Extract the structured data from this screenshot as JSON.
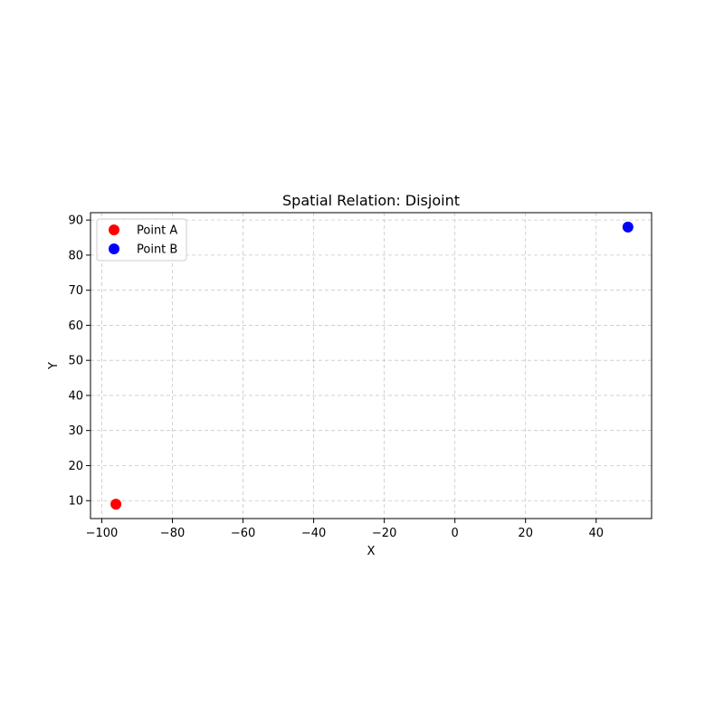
{
  "chart_data": {
    "type": "scatter",
    "title": "Spatial Relation: Disjoint",
    "xlabel": "X",
    "ylabel": "Y",
    "xlim": [
      -103.2,
      55.7
    ],
    "ylim": [
      4.9,
      92.1
    ],
    "xticks": [
      -100,
      -80,
      -60,
      -40,
      -20,
      0,
      20,
      40
    ],
    "xtick_labels": [
      "−100",
      "−80",
      "−60",
      "−40",
      "−20",
      "0",
      "20",
      "40"
    ],
    "yticks": [
      10,
      20,
      30,
      40,
      50,
      60,
      70,
      80,
      90
    ],
    "ytick_labels": [
      "10",
      "20",
      "30",
      "40",
      "50",
      "60",
      "70",
      "80",
      "90"
    ],
    "grid": true,
    "legend_position": "top-left",
    "series": [
      {
        "name": "Point A",
        "color": "#ff0000",
        "x": [
          -96
        ],
        "y": [
          9
        ]
      },
      {
        "name": "Point B",
        "color": "#0000ff",
        "x": [
          49
        ],
        "y": [
          88
        ]
      }
    ]
  }
}
